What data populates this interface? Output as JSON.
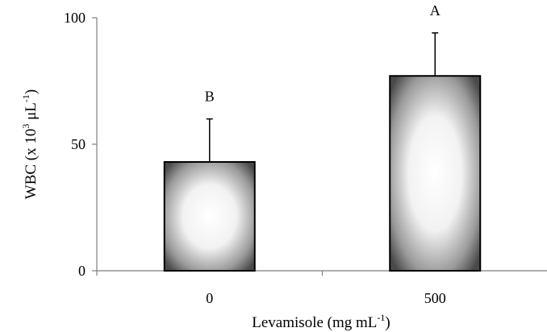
{
  "chart_data": {
    "type": "bar",
    "categories": [
      "0",
      "500"
    ],
    "values": [
      43,
      77
    ],
    "error_upper": [
      60,
      94
    ],
    "significance_labels": [
      "B",
      "A"
    ],
    "xlabel": "Levamisole (mg mL-1)",
    "ylabel": "WBC (x 103 μL-1)",
    "ylim": [
      0,
      100
    ],
    "yticks": [
      "0",
      "50",
      "100"
    ],
    "grid": false,
    "legend": "none",
    "bar_fill": "radial gradient, white center to dark gray edges",
    "bar_stroke": "#000000"
  },
  "axes": {
    "x_title": {
      "prefix": "Levamisole (mg mL",
      "sup": "-1",
      "suffix": ")"
    },
    "y_title": {
      "prefix": "WBC (x 10",
      "sup1": "3",
      "mid": " μL",
      "sup2": "-1",
      "suffix": ")"
    }
  }
}
